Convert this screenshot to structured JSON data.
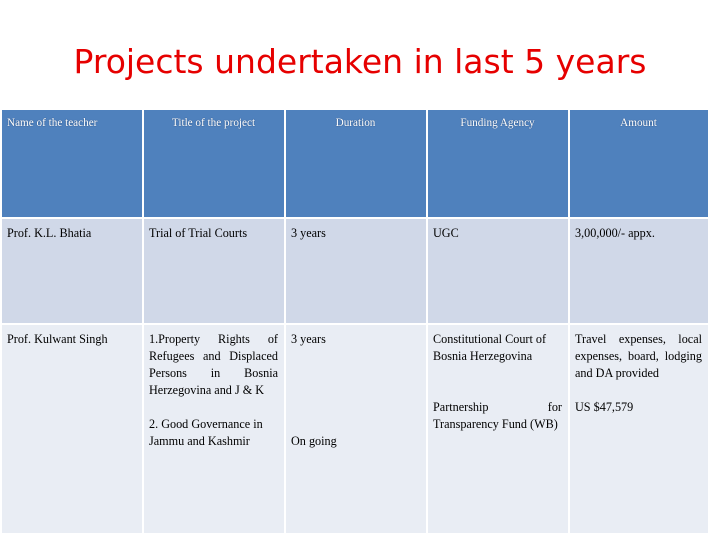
{
  "slide": {
    "title": "Projects undertaken in last 5 years"
  },
  "table": {
    "headers": [
      "Name of the teacher",
      "Title of the project",
      "Duration",
      "Funding Agency",
      "Amount"
    ],
    "rows": [
      {
        "teacher": "Prof. K.L. Bhatia",
        "title": "Trial of Trial Courts",
        "duration": "3 years",
        "agency": "UGC",
        "amount": "3,00,000/- appx."
      },
      {
        "teacher": "Prof. Kulwant Singh",
        "projects": [
          {
            "title": "1.Property Rights of Refugees and Displaced Persons in Bosnia Herzegovina and J & K",
            "duration": "3 years",
            "agency": "Constitutional Court of Bosnia Herzegovina",
            "amount": "Travel expenses, local expenses, board, lodging and DA provided"
          },
          {
            "title": "2. Good Governance in Jammu and Kashmir",
            "duration": "On going",
            "agency": "Partnership for Transparency Fund (WB)",
            "amount": "US $47,579"
          }
        ]
      }
    ]
  }
}
